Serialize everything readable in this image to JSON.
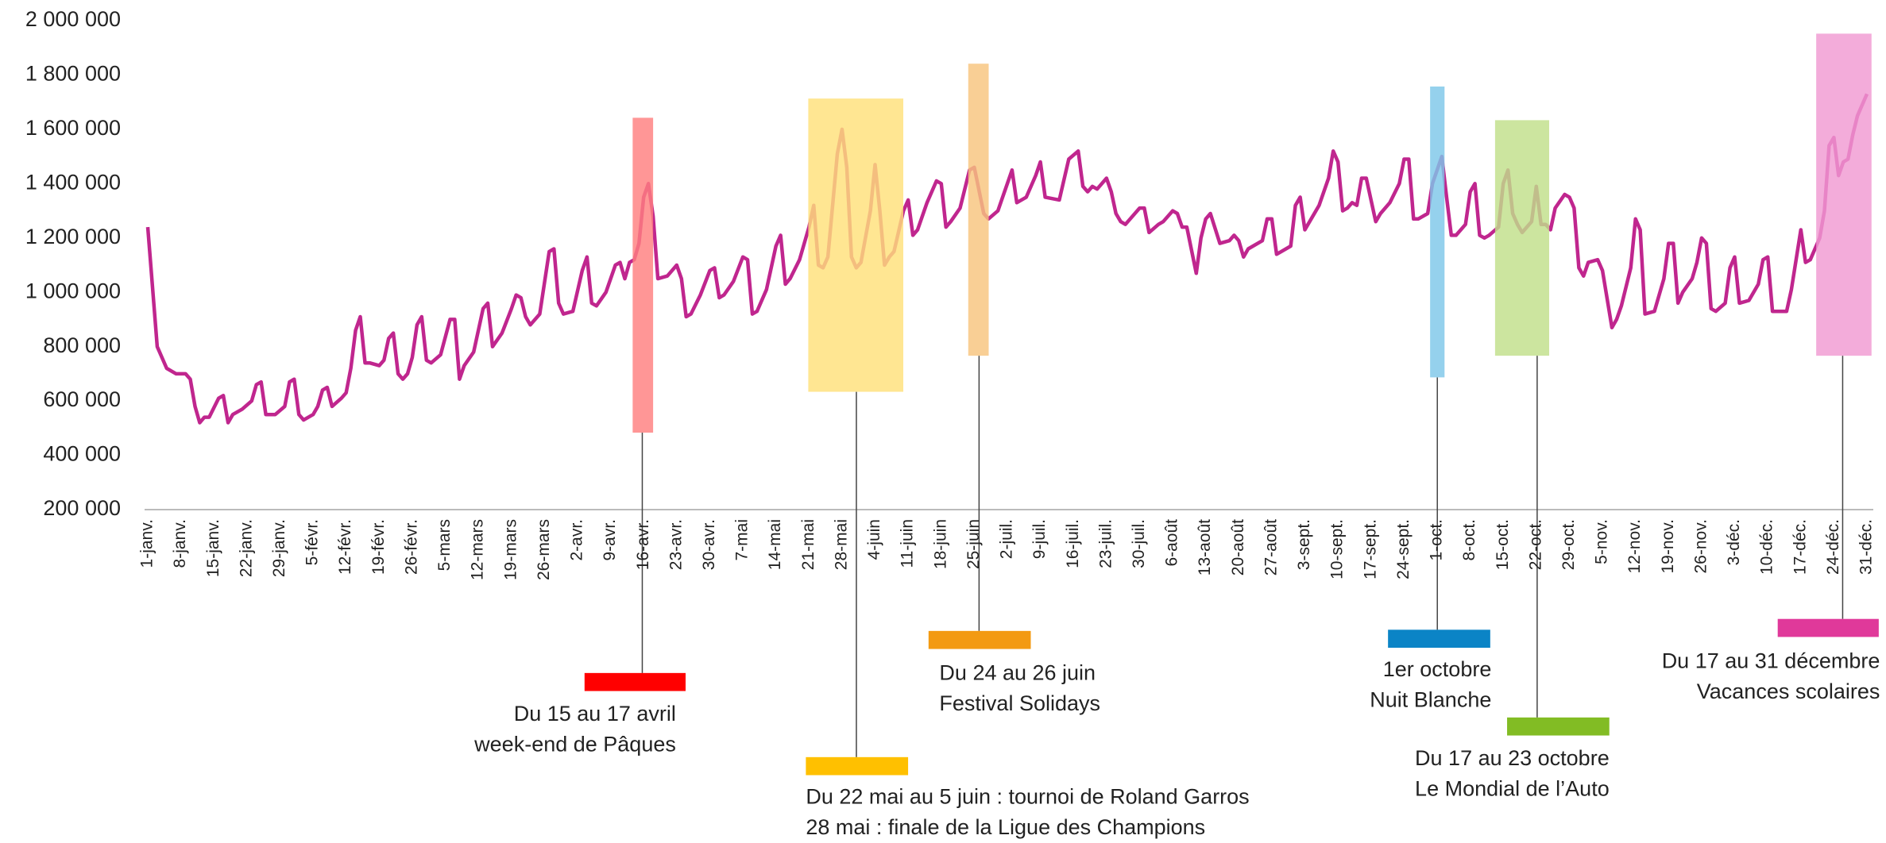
{
  "chart_data": {
    "type": "line",
    "color": "#c0268e",
    "xlim": [
      0,
      364
    ],
    "ylim": [
      200000,
      2000000
    ],
    "yticks": [
      {
        "value": 200000,
        "label": "200 000"
      },
      {
        "value": 400000,
        "label": "400 000"
      },
      {
        "value": 600000,
        "label": "600 000"
      },
      {
        "value": 800000,
        "label": "800 000"
      },
      {
        "value": 1000000,
        "label": "1 000 000"
      },
      {
        "value": 1200000,
        "label": "1 200 000"
      },
      {
        "value": 1400000,
        "label": "1 400 000"
      },
      {
        "value": 1600000,
        "label": "1 600 000"
      },
      {
        "value": 1800000,
        "label": "1 800 000"
      },
      {
        "value": 2000000,
        "label": "2 000 000"
      }
    ],
    "xticks": [
      {
        "value": 0,
        "label": "1-janv."
      },
      {
        "value": 7,
        "label": "8-janv."
      },
      {
        "value": 14,
        "label": "15-janv."
      },
      {
        "value": 21,
        "label": "22-janv."
      },
      {
        "value": 28,
        "label": "29-janv."
      },
      {
        "value": 35,
        "label": "5-févr."
      },
      {
        "value": 42,
        "label": "12-févr."
      },
      {
        "value": 49,
        "label": "19-févr."
      },
      {
        "value": 56,
        "label": "26-févr."
      },
      {
        "value": 63,
        "label": "5-mars"
      },
      {
        "value": 70,
        "label": "12-mars"
      },
      {
        "value": 77,
        "label": "19-mars"
      },
      {
        "value": 84,
        "label": "26-mars"
      },
      {
        "value": 91,
        "label": "2-avr."
      },
      {
        "value": 98,
        "label": "9-avr."
      },
      {
        "value": 105,
        "label": "16-avr."
      },
      {
        "value": 112,
        "label": "23-avr."
      },
      {
        "value": 119,
        "label": "30-avr."
      },
      {
        "value": 126,
        "label": "7-mai"
      },
      {
        "value": 133,
        "label": "14-mai"
      },
      {
        "value": 140,
        "label": "21-mai"
      },
      {
        "value": 147,
        "label": "28-mai"
      },
      {
        "value": 154,
        "label": "4-juin"
      },
      {
        "value": 161,
        "label": "11-juin"
      },
      {
        "value": 168,
        "label": "18-juin"
      },
      {
        "value": 175,
        "label": "25-juin"
      },
      {
        "value": 182,
        "label": "2-juil."
      },
      {
        "value": 189,
        "label": "9-juil."
      },
      {
        "value": 196,
        "label": "16-juil."
      },
      {
        "value": 203,
        "label": "23-juil."
      },
      {
        "value": 210,
        "label": "30-juil."
      },
      {
        "value": 217,
        "label": "6-août"
      },
      {
        "value": 224,
        "label": "13-août"
      },
      {
        "value": 231,
        "label": "20-août"
      },
      {
        "value": 238,
        "label": "27-août"
      },
      {
        "value": 245,
        "label": "3-sept."
      },
      {
        "value": 252,
        "label": "10-sept."
      },
      {
        "value": 259,
        "label": "17-sept."
      },
      {
        "value": 266,
        "label": "24-sept."
      },
      {
        "value": 273,
        "label": "1-oct."
      },
      {
        "value": 280,
        "label": "8-oct."
      },
      {
        "value": 287,
        "label": "15-oct."
      },
      {
        "value": 294,
        "label": "22-oct."
      },
      {
        "value": 301,
        "label": "29-oct."
      },
      {
        "value": 308,
        "label": "5-nov."
      },
      {
        "value": 315,
        "label": "12-nov."
      },
      {
        "value": 322,
        "label": "19-nov."
      },
      {
        "value": 329,
        "label": "26-nov."
      },
      {
        "value": 336,
        "label": "3-déc."
      },
      {
        "value": 343,
        "label": "10-déc."
      },
      {
        "value": 350,
        "label": "17-déc."
      },
      {
        "value": 357,
        "label": "24-déc."
      },
      {
        "value": 364,
        "label": "31-déc."
      }
    ],
    "x": [
      0,
      2,
      4,
      6,
      8,
      9,
      10,
      11,
      12,
      13,
      15,
      16,
      17,
      18,
      20,
      22,
      23,
      24,
      25,
      27,
      29,
      30,
      31,
      32,
      33,
      35,
      36,
      37,
      38,
      39,
      41,
      42,
      43,
      44,
      45,
      46,
      47,
      49,
      50,
      51,
      52,
      53,
      54,
      55,
      56,
      57,
      58,
      59,
      60,
      62,
      64,
      65,
      66,
      67,
      69,
      71,
      72,
      73,
      75,
      77,
      78,
      79,
      80,
      81,
      83,
      85,
      86,
      87,
      88,
      90,
      92,
      93,
      94,
      95,
      97,
      99,
      100,
      101,
      102,
      103,
      104,
      105,
      106,
      107,
      108,
      110,
      112,
      113,
      114,
      115,
      117,
      119,
      120,
      121,
      122,
      124,
      126,
      127,
      128,
      129,
      131,
      133,
      134,
      135,
      136,
      138,
      140,
      141,
      142,
      143,
      144,
      146,
      147,
      148,
      149,
      150,
      151,
      153,
      154,
      155,
      156,
      157,
      158,
      160,
      161,
      162,
      163,
      165,
      167,
      168,
      169,
      170,
      172,
      174,
      175,
      177,
      178,
      180,
      183,
      184,
      186,
      188,
      189,
      190,
      193,
      195,
      197,
      198,
      199,
      200,
      201,
      203,
      204,
      205,
      206,
      207,
      210,
      211,
      212,
      214,
      215,
      217,
      218,
      219,
      220,
      222,
      223,
      224,
      225,
      227,
      229,
      230,
      231,
      232,
      233,
      236,
      237,
      238,
      239,
      240,
      242,
      243,
      244,
      245,
      248,
      250,
      251,
      252,
      253,
      254,
      255,
      256,
      257,
      258,
      260,
      261,
      263,
      265,
      266,
      267,
      268,
      269,
      271,
      272,
      274,
      275,
      276,
      277,
      279,
      280,
      281,
      282,
      283,
      284,
      286,
      287,
      288,
      289,
      290,
      291,
      293,
      294,
      295,
      296,
      297,
      298,
      300,
      301,
      302,
      303,
      304,
      305,
      307,
      308,
      310,
      311,
      312,
      314,
      315,
      316,
      317,
      319,
      321,
      322,
      323,
      324,
      325,
      327,
      328,
      329,
      330,
      331,
      332,
      334,
      335,
      336,
      337,
      339,
      341,
      342,
      343,
      344,
      347,
      348,
      350,
      351,
      352,
      354,
      355,
      356,
      357,
      358,
      359,
      360,
      361,
      362,
      364
    ],
    "values": [
      1240000,
      800000,
      720000,
      700000,
      700000,
      680000,
      580000,
      520000,
      540000,
      540000,
      610000,
      620000,
      520000,
      550000,
      570000,
      600000,
      660000,
      670000,
      550000,
      550000,
      580000,
      670000,
      680000,
      550000,
      530000,
      550000,
      580000,
      640000,
      650000,
      580000,
      610000,
      630000,
      720000,
      860000,
      910000,
      740000,
      740000,
      730000,
      750000,
      830000,
      850000,
      700000,
      680000,
      700000,
      760000,
      880000,
      910000,
      750000,
      740000,
      770000,
      900000,
      900000,
      680000,
      730000,
      780000,
      940000,
      960000,
      800000,
      850000,
      940000,
      990000,
      980000,
      910000,
      880000,
      920000,
      1150000,
      1160000,
      960000,
      920000,
      930000,
      1080000,
      1130000,
      960000,
      950000,
      1000000,
      1100000,
      1110000,
      1050000,
      1110000,
      1120000,
      1180000,
      1350000,
      1400000,
      1280000,
      1050000,
      1060000,
      1100000,
      1050000,
      910000,
      920000,
      990000,
      1080000,
      1090000,
      980000,
      990000,
      1040000,
      1130000,
      1120000,
      920000,
      930000,
      1010000,
      1170000,
      1210000,
      1030000,
      1050000,
      1120000,
      1240000,
      1320000,
      1100000,
      1090000,
      1130000,
      1510000,
      1600000,
      1460000,
      1130000,
      1090000,
      1110000,
      1300000,
      1470000,
      1300000,
      1100000,
      1130000,
      1150000,
      1300000,
      1340000,
      1210000,
      1230000,
      1330000,
      1410000,
      1400000,
      1240000,
      1260000,
      1310000,
      1450000,
      1460000,
      1290000,
      1270000,
      1300000,
      1450000,
      1330000,
      1350000,
      1430000,
      1480000,
      1350000,
      1340000,
      1490000,
      1520000,
      1390000,
      1370000,
      1390000,
      1380000,
      1420000,
      1370000,
      1290000,
      1260000,
      1250000,
      1310000,
      1310000,
      1220000,
      1250000,
      1260000,
      1300000,
      1290000,
      1240000,
      1240000,
      1070000,
      1200000,
      1270000,
      1290000,
      1180000,
      1190000,
      1210000,
      1190000,
      1130000,
      1160000,
      1190000,
      1270000,
      1270000,
      1140000,
      1150000,
      1170000,
      1320000,
      1350000,
      1230000,
      1320000,
      1420000,
      1520000,
      1480000,
      1300000,
      1310000,
      1330000,
      1320000,
      1420000,
      1420000,
      1260000,
      1290000,
      1330000,
      1400000,
      1490000,
      1490000,
      1270000,
      1270000,
      1290000,
      1400000,
      1500000,
      1350000,
      1210000,
      1210000,
      1250000,
      1370000,
      1400000,
      1210000,
      1200000,
      1210000,
      1240000,
      1400000,
      1450000,
      1290000,
      1250000,
      1220000,
      1260000,
      1390000,
      1250000,
      1250000,
      1230000,
      1310000,
      1360000,
      1350000,
      1310000,
      1090000,
      1060000,
      1110000,
      1120000,
      1080000,
      870000,
      900000,
      950000,
      1090000,
      1270000,
      1230000,
      920000,
      930000,
      1050000,
      1180000,
      1180000,
      960000,
      1000000,
      1050000,
      1110000,
      1200000,
      1180000,
      940000,
      930000,
      960000,
      1090000,
      1130000,
      960000,
      970000,
      1030000,
      1120000,
      1130000,
      930000,
      930000,
      1010000,
      1230000,
      1110000,
      1120000,
      1200000,
      1300000,
      1540000,
      1570000,
      1430000,
      1480000,
      1490000,
      1580000,
      1650000,
      1730000
    ],
    "annotations": [
      {
        "lines": [
          "Du 15 au 17 avril",
          "week-end de Pâques"
        ],
        "color": "#ff0000",
        "box_color": "#ff7f7f"
      },
      {
        "lines": [
          "Du 22 mai au 5 juin : tournoi de Roland Garros",
          "28 mai : finale de la Ligue des Champions"
        ],
        "color": "#ffc000",
        "box_color": "#ffe07a"
      },
      {
        "lines": [
          "Du 24 au 26 juin",
          "Festival Solidays"
        ],
        "color": "#f39a12",
        "box_color": "#f8c57e"
      },
      {
        "lines": [
          "1er octobre",
          "Nuit Blanche"
        ],
        "color": "#0b84c6",
        "box_color": "#7ec7e9"
      },
      {
        "lines": [
          "Du 17 au 23 octobre",
          "Le Mondial de l’Auto"
        ],
        "color": "#82bc24",
        "box_color": "#c1df8a"
      },
      {
        "lines": [
          "Du 17 au 31 décembre",
          "Vacances scolaires"
        ],
        "color": "#e0399a",
        "box_color": "#f09ad2"
      }
    ]
  }
}
